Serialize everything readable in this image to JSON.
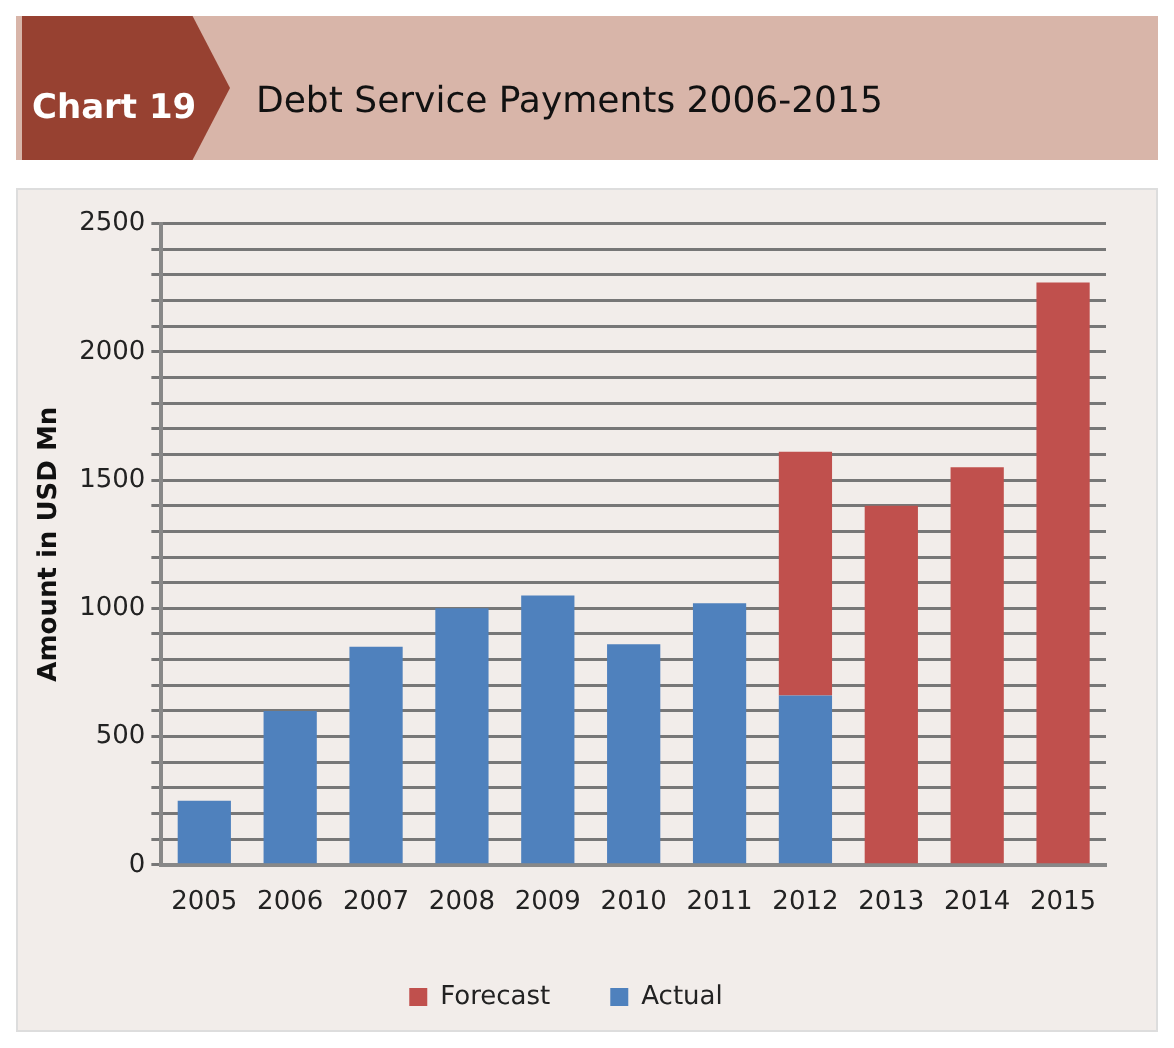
{
  "chart_data": {
    "type": "bar",
    "title": "Debt Service Payments 2006-2015",
    "annotations": [
      "Chart 19"
    ],
    "ylabel": "Amount in USD Mn",
    "categories": [
      "2005",
      "2006",
      "2007",
      "2008",
      "2009",
      "2010",
      "2011",
      "2012",
      "2013",
      "2014",
      "2015"
    ],
    "stacked": true,
    "series": [
      {
        "name": "Actual",
        "color": "#4f81bd",
        "values": [
          250,
          600,
          850,
          1000,
          1050,
          860,
          1020,
          660,
          null,
          null,
          null
        ]
      },
      {
        "name": "Forecast",
        "color": "#c0504d",
        "values": [
          null,
          null,
          null,
          null,
          null,
          null,
          null,
          950,
          1400,
          1550,
          2270
        ]
      }
    ],
    "ylim": [
      0,
      2500
    ],
    "yticks": [
      0,
      {
        "value": 100,
        "label": null
      },
      {
        "value": 200,
        "label": null
      },
      {
        "value": 300,
        "label": null
      },
      {
        "value": 400,
        "label": null
      },
      500,
      {
        "value": 600,
        "label": null
      },
      {
        "value": 700,
        "label": null
      },
      {
        "value": 800,
        "label": null
      },
      {
        "value": 900,
        "label": null
      },
      1000,
      {
        "value": 1100,
        "label": null
      },
      {
        "value": 1200,
        "label": null
      },
      {
        "value": 1300,
        "label": null
      },
      {
        "value": 1400,
        "label": null
      },
      1500,
      {
        "value": 1600,
        "label": null
      },
      {
        "value": 1700,
        "label": null
      },
      {
        "value": 1800,
        "label": null
      },
      {
        "value": 1900,
        "label": null
      },
      2000,
      {
        "value": 2100,
        "label": null
      },
      {
        "value": 2200,
        "label": null
      },
      {
        "value": 2300,
        "label": null
      },
      {
        "value": 2400,
        "label": null
      },
      2500
    ],
    "grid": "y",
    "legend": "bottom"
  }
}
